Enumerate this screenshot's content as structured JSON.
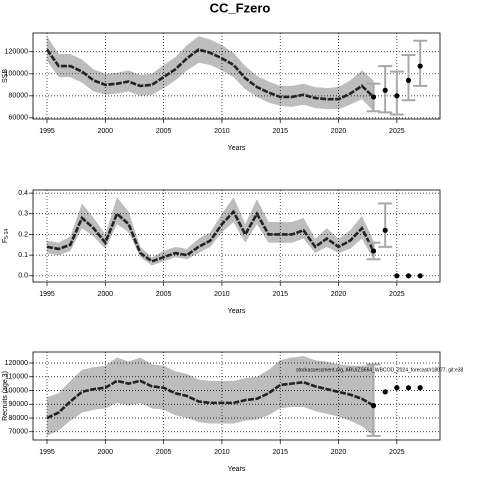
{
  "title": "CC_Fzero",
  "footnote": "stockassessment.org, ARU/ZS664_WBCOD_2024_forecast/r18077, git:e38",
  "chart_data": [
    {
      "type": "line",
      "ylabel": "SSB",
      "xlabel": "Years",
      "xlim": [
        1993.8,
        2028.7
      ],
      "xticks": [
        1995,
        2000,
        2005,
        2010,
        2015,
        2020,
        2025
      ],
      "ylim": [
        59000,
        137000
      ],
      "yticks": [
        60000,
        80000,
        100000,
        120000
      ],
      "grid": true,
      "line_color": "#222222",
      "band_color": "#bdbdbd",
      "bar_color": "#a8a8a8",
      "x": [
        1995,
        1996,
        1997,
        1998,
        1999,
        2000,
        2001,
        2002,
        2003,
        2004,
        2005,
        2006,
        2007,
        2008,
        2009,
        2010,
        2011,
        2012,
        2013,
        2014,
        2015,
        2016,
        2017,
        2018,
        2019,
        2020,
        2021,
        2022,
        2023
      ],
      "values": [
        122000,
        107000,
        107000,
        102000,
        94000,
        90000,
        91000,
        93000,
        89000,
        90000,
        97000,
        104000,
        114000,
        122000,
        119000,
        114000,
        108000,
        96000,
        88000,
        83000,
        79000,
        79000,
        81000,
        78000,
        77000,
        77000,
        82000,
        89000,
        79000
      ],
      "lower": [
        112000,
        97000,
        97000,
        92000,
        84000,
        81000,
        82000,
        84000,
        80000,
        81000,
        87000,
        94000,
        103000,
        110000,
        108000,
        103000,
        97000,
        86000,
        79000,
        74000,
        71000,
        70000,
        72000,
        69000,
        68000,
        68000,
        72000,
        77000,
        66000
      ],
      "upper": [
        134000,
        118000,
        118000,
        113000,
        104000,
        100000,
        101000,
        103000,
        99000,
        100000,
        108000,
        115000,
        126000,
        134000,
        131000,
        126000,
        119000,
        107000,
        98000,
        93000,
        89000,
        89000,
        91000,
        88000,
        87000,
        88000,
        94000,
        103000,
        94000
      ],
      "forecast": {
        "x": [
          2023,
          2024,
          2025,
          2026,
          2027
        ],
        "values": [
          79000,
          85000,
          80000,
          94000,
          107000
        ],
        "lower": [
          66000,
          65000,
          63000,
          76000,
          89000
        ],
        "upper": [
          91000,
          107000,
          102000,
          117000,
          130000
        ]
      }
    },
    {
      "type": "line",
      "ylabel": "F",
      "ylabel_sub": "5-14",
      "xlabel": "Years",
      "xlim": [
        1993.8,
        2028.7
      ],
      "xticks": [
        1995,
        2000,
        2005,
        2010,
        2015,
        2020,
        2025
      ],
      "ylim": [
        -0.03,
        0.415
      ],
      "yticks": [
        {
          "value": 0,
          "label": "0.0"
        },
        0.1,
        0.2,
        0.3,
        0.4
      ],
      "grid": true,
      "line_color": "#222222",
      "band_color": "#bdbdbd",
      "bar_color": "#a8a8a8",
      "x": [
        1995,
        1996,
        1997,
        1998,
        1999,
        2000,
        2001,
        2002,
        2003,
        2004,
        2005,
        2006,
        2007,
        2008,
        2009,
        2010,
        2011,
        2012,
        2013,
        2014,
        2015,
        2016,
        2017,
        2018,
        2019,
        2020,
        2021,
        2022,
        2023
      ],
      "values": [
        0.14,
        0.13,
        0.15,
        0.28,
        0.23,
        0.16,
        0.3,
        0.25,
        0.11,
        0.07,
        0.09,
        0.11,
        0.1,
        0.14,
        0.17,
        0.25,
        0.31,
        0.2,
        0.3,
        0.2,
        0.2,
        0.2,
        0.22,
        0.14,
        0.18,
        0.14,
        0.17,
        0.23,
        0.12
      ],
      "lower": [
        0.11,
        0.1,
        0.12,
        0.23,
        0.19,
        0.13,
        0.25,
        0.21,
        0.09,
        0.05,
        0.07,
        0.09,
        0.08,
        0.11,
        0.14,
        0.21,
        0.26,
        0.16,
        0.25,
        0.16,
        0.16,
        0.16,
        0.18,
        0.11,
        0.14,
        0.11,
        0.13,
        0.18,
        0.08
      ],
      "upper": [
        0.17,
        0.16,
        0.19,
        0.35,
        0.28,
        0.2,
        0.38,
        0.31,
        0.14,
        0.09,
        0.12,
        0.14,
        0.13,
        0.18,
        0.21,
        0.3,
        0.38,
        0.25,
        0.37,
        0.26,
        0.26,
        0.26,
        0.28,
        0.18,
        0.23,
        0.18,
        0.22,
        0.29,
        0.17
      ],
      "forecast": {
        "x": [
          2023,
          2024,
          2025,
          2026,
          2027
        ],
        "values": [
          0.12,
          0.22,
          0,
          0,
          0
        ],
        "lower": [
          0.08,
          0.14,
          null,
          null,
          null
        ],
        "upper": [
          0.16,
          0.35,
          null,
          null,
          null
        ]
      }
    },
    {
      "type": "line",
      "ylabel": "Recruits (age 3)",
      "xlabel": "Years",
      "xlim": [
        1993.8,
        2028.7
      ],
      "xticks": [
        1995,
        2000,
        2005,
        2010,
        2015,
        2020,
        2025
      ],
      "ylim": [
        64000,
        128000
      ],
      "yticks": [
        70000,
        80000,
        90000,
        100000,
        110000,
        120000
      ],
      "grid": true,
      "line_color": "#222222",
      "band_color": "#bdbdbd",
      "bar_color": "#a8a8a8",
      "x": [
        1995,
        1996,
        1997,
        1998,
        1999,
        2000,
        2001,
        2002,
        2003,
        2004,
        2005,
        2006,
        2007,
        2008,
        2009,
        2010,
        2011,
        2012,
        2013,
        2014,
        2015,
        2016,
        2017,
        2018,
        2019,
        2020,
        2021,
        2022,
        2023
      ],
      "values": [
        80000,
        84000,
        92000,
        99000,
        101000,
        102000,
        107000,
        105000,
        107000,
        103000,
        102000,
        98000,
        96000,
        92000,
        91000,
        91000,
        91000,
        93000,
        94000,
        98000,
        104000,
        105000,
        106000,
        103000,
        101000,
        99000,
        97000,
        94000,
        89000
      ],
      "lower": [
        67000,
        71000,
        78000,
        84000,
        86000,
        87000,
        91000,
        89000,
        91000,
        87000,
        86000,
        82000,
        80000,
        77000,
        76000,
        76000,
        76000,
        78000,
        79000,
        82000,
        87000,
        88000,
        88000,
        85000,
        83000,
        81000,
        78000,
        74000,
        67000
      ],
      "upper": [
        95000,
        98000,
        107000,
        115000,
        117000,
        118000,
        124000,
        121000,
        124000,
        119000,
        118000,
        114000,
        112000,
        108000,
        107000,
        107000,
        107000,
        109000,
        110000,
        115000,
        122000,
        124000,
        125000,
        122000,
        121000,
        119000,
        118000,
        118000,
        119000
      ],
      "forecast": {
        "x": [
          2023,
          2024,
          2025,
          2026,
          2027
        ],
        "values": [
          89000,
          99000,
          102000,
          102000,
          102000
        ],
        "lower": [
          67000,
          null,
          null,
          null,
          null
        ],
        "upper": [
          119000,
          null,
          null,
          null,
          null
        ]
      }
    }
  ]
}
